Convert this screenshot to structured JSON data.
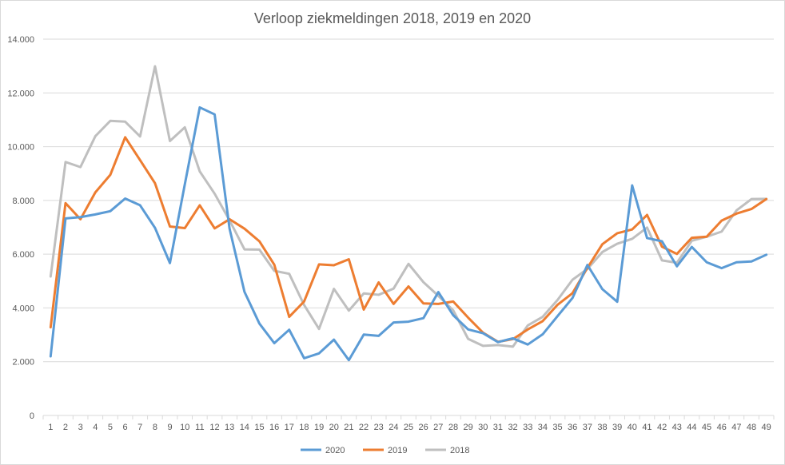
{
  "chart_data": {
    "type": "line",
    "title": "Verloop ziekmeldingen 2018, 2019 en 2020",
    "xlabel": "",
    "ylabel": "",
    "x": [
      1,
      2,
      3,
      4,
      5,
      6,
      7,
      8,
      9,
      10,
      11,
      12,
      13,
      14,
      15,
      16,
      17,
      18,
      19,
      20,
      21,
      22,
      23,
      24,
      25,
      26,
      27,
      28,
      29,
      30,
      31,
      32,
      33,
      34,
      35,
      36,
      37,
      38,
      39,
      40,
      41,
      42,
      43,
      44,
      45,
      46,
      47,
      48,
      49
    ],
    "y_ticks": [
      "0",
      "2.000",
      "4.000",
      "6.000",
      "8.000",
      "10.000",
      "12.000",
      "14.000"
    ],
    "ylim": [
      0,
      14000
    ],
    "grid": true,
    "legend_position": "bottom",
    "series": [
      {
        "name": "2020",
        "color": "#5b9bd5",
        "values": [
          2200,
          7330,
          7380,
          7480,
          7600,
          8070,
          7820,
          6980,
          5670,
          8600,
          11460,
          11200,
          6950,
          4600,
          3420,
          2690,
          3190,
          2130,
          2310,
          2820,
          2060,
          3010,
          2960,
          3460,
          3490,
          3620,
          4590,
          3730,
          3200,
          3060,
          2730,
          2870,
          2640,
          3020,
          3700,
          4370,
          5600,
          4700,
          4230,
          8560,
          6600,
          6480,
          5550,
          6270,
          5700,
          5480,
          5700,
          5730,
          5980
        ]
      },
      {
        "name": "2019",
        "color": "#ed7d31",
        "values": [
          3280,
          7900,
          7300,
          8300,
          8950,
          10350,
          9500,
          8640,
          7030,
          6970,
          7820,
          6960,
          7300,
          6950,
          6480,
          5610,
          3670,
          4240,
          5620,
          5590,
          5810,
          3940,
          4950,
          4150,
          4800,
          4170,
          4150,
          4240,
          3640,
          3080,
          2740,
          2840,
          3200,
          3510,
          4120,
          4550,
          5490,
          6370,
          6780,
          6920,
          7460,
          6280,
          6010,
          6610,
          6650,
          7250,
          7510,
          7680,
          8050
        ]
      },
      {
        "name": "2018",
        "color": "#bfbfbf",
        "values": [
          5170,
          9430,
          9240,
          10390,
          10960,
          10930,
          10380,
          12990,
          10210,
          10720,
          9080,
          8250,
          7260,
          6180,
          6170,
          5380,
          5270,
          4110,
          3220,
          4710,
          3900,
          4540,
          4490,
          4720,
          5640,
          4960,
          4450,
          3910,
          2850,
          2590,
          2620,
          2560,
          3350,
          3670,
          4300,
          5050,
          5450,
          6080,
          6390,
          6570,
          6990,
          5770,
          5680,
          6500,
          6650,
          6840,
          7630,
          8050,
          8060
        ]
      }
    ]
  }
}
